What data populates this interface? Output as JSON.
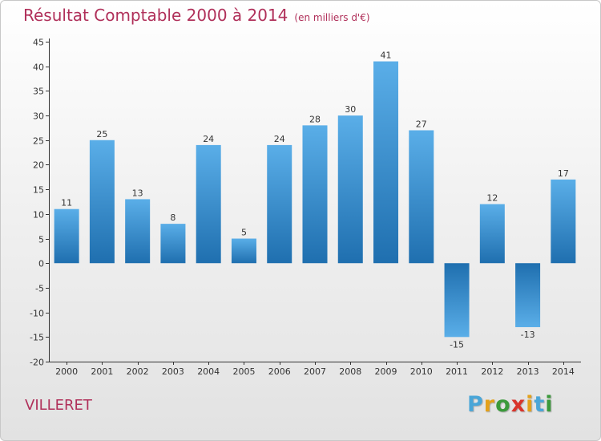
{
  "chart_data": {
    "type": "bar",
    "title": "Résultat Comptable 2000 à 2014",
    "subtitle": "(en milliers d'€)",
    "categories": [
      "2000",
      "2001",
      "2002",
      "2003",
      "2004",
      "2005",
      "2006",
      "2007",
      "2008",
      "2009",
      "2010",
      "2011",
      "2012",
      "2013",
      "2014"
    ],
    "values": [
      11,
      25,
      13,
      8,
      24,
      5,
      24,
      28,
      30,
      41,
      27,
      -15,
      12,
      -13,
      17
    ],
    "value_labels": [
      "11",
      "25",
      "13",
      "8",
      "24",
      "5",
      "24",
      "28",
      "30",
      "41",
      "27",
      "-15",
      "12",
      "-13",
      "17"
    ],
    "ylim": [
      -20,
      45
    ],
    "yticks": [
      -20,
      -15,
      -10,
      -5,
      0,
      5,
      10,
      15,
      20,
      25,
      30,
      35,
      40,
      45
    ],
    "xlabel": "",
    "ylabel": "",
    "grid": false
  },
  "commune": "VILLERET",
  "logo": {
    "letters": [
      "P",
      "r",
      "o",
      "x",
      "i",
      "t",
      "i"
    ],
    "colors": [
      "#4aa6d8",
      "#e4a11b",
      "#3b9a3b",
      "#d9342b",
      "#e4a11b",
      "#4aa6d8",
      "#3b9a3b"
    ]
  },
  "colors": {
    "title": "#b0305a",
    "bar_light": "#5aaee8",
    "bar_dark": "#1f6faf"
  }
}
